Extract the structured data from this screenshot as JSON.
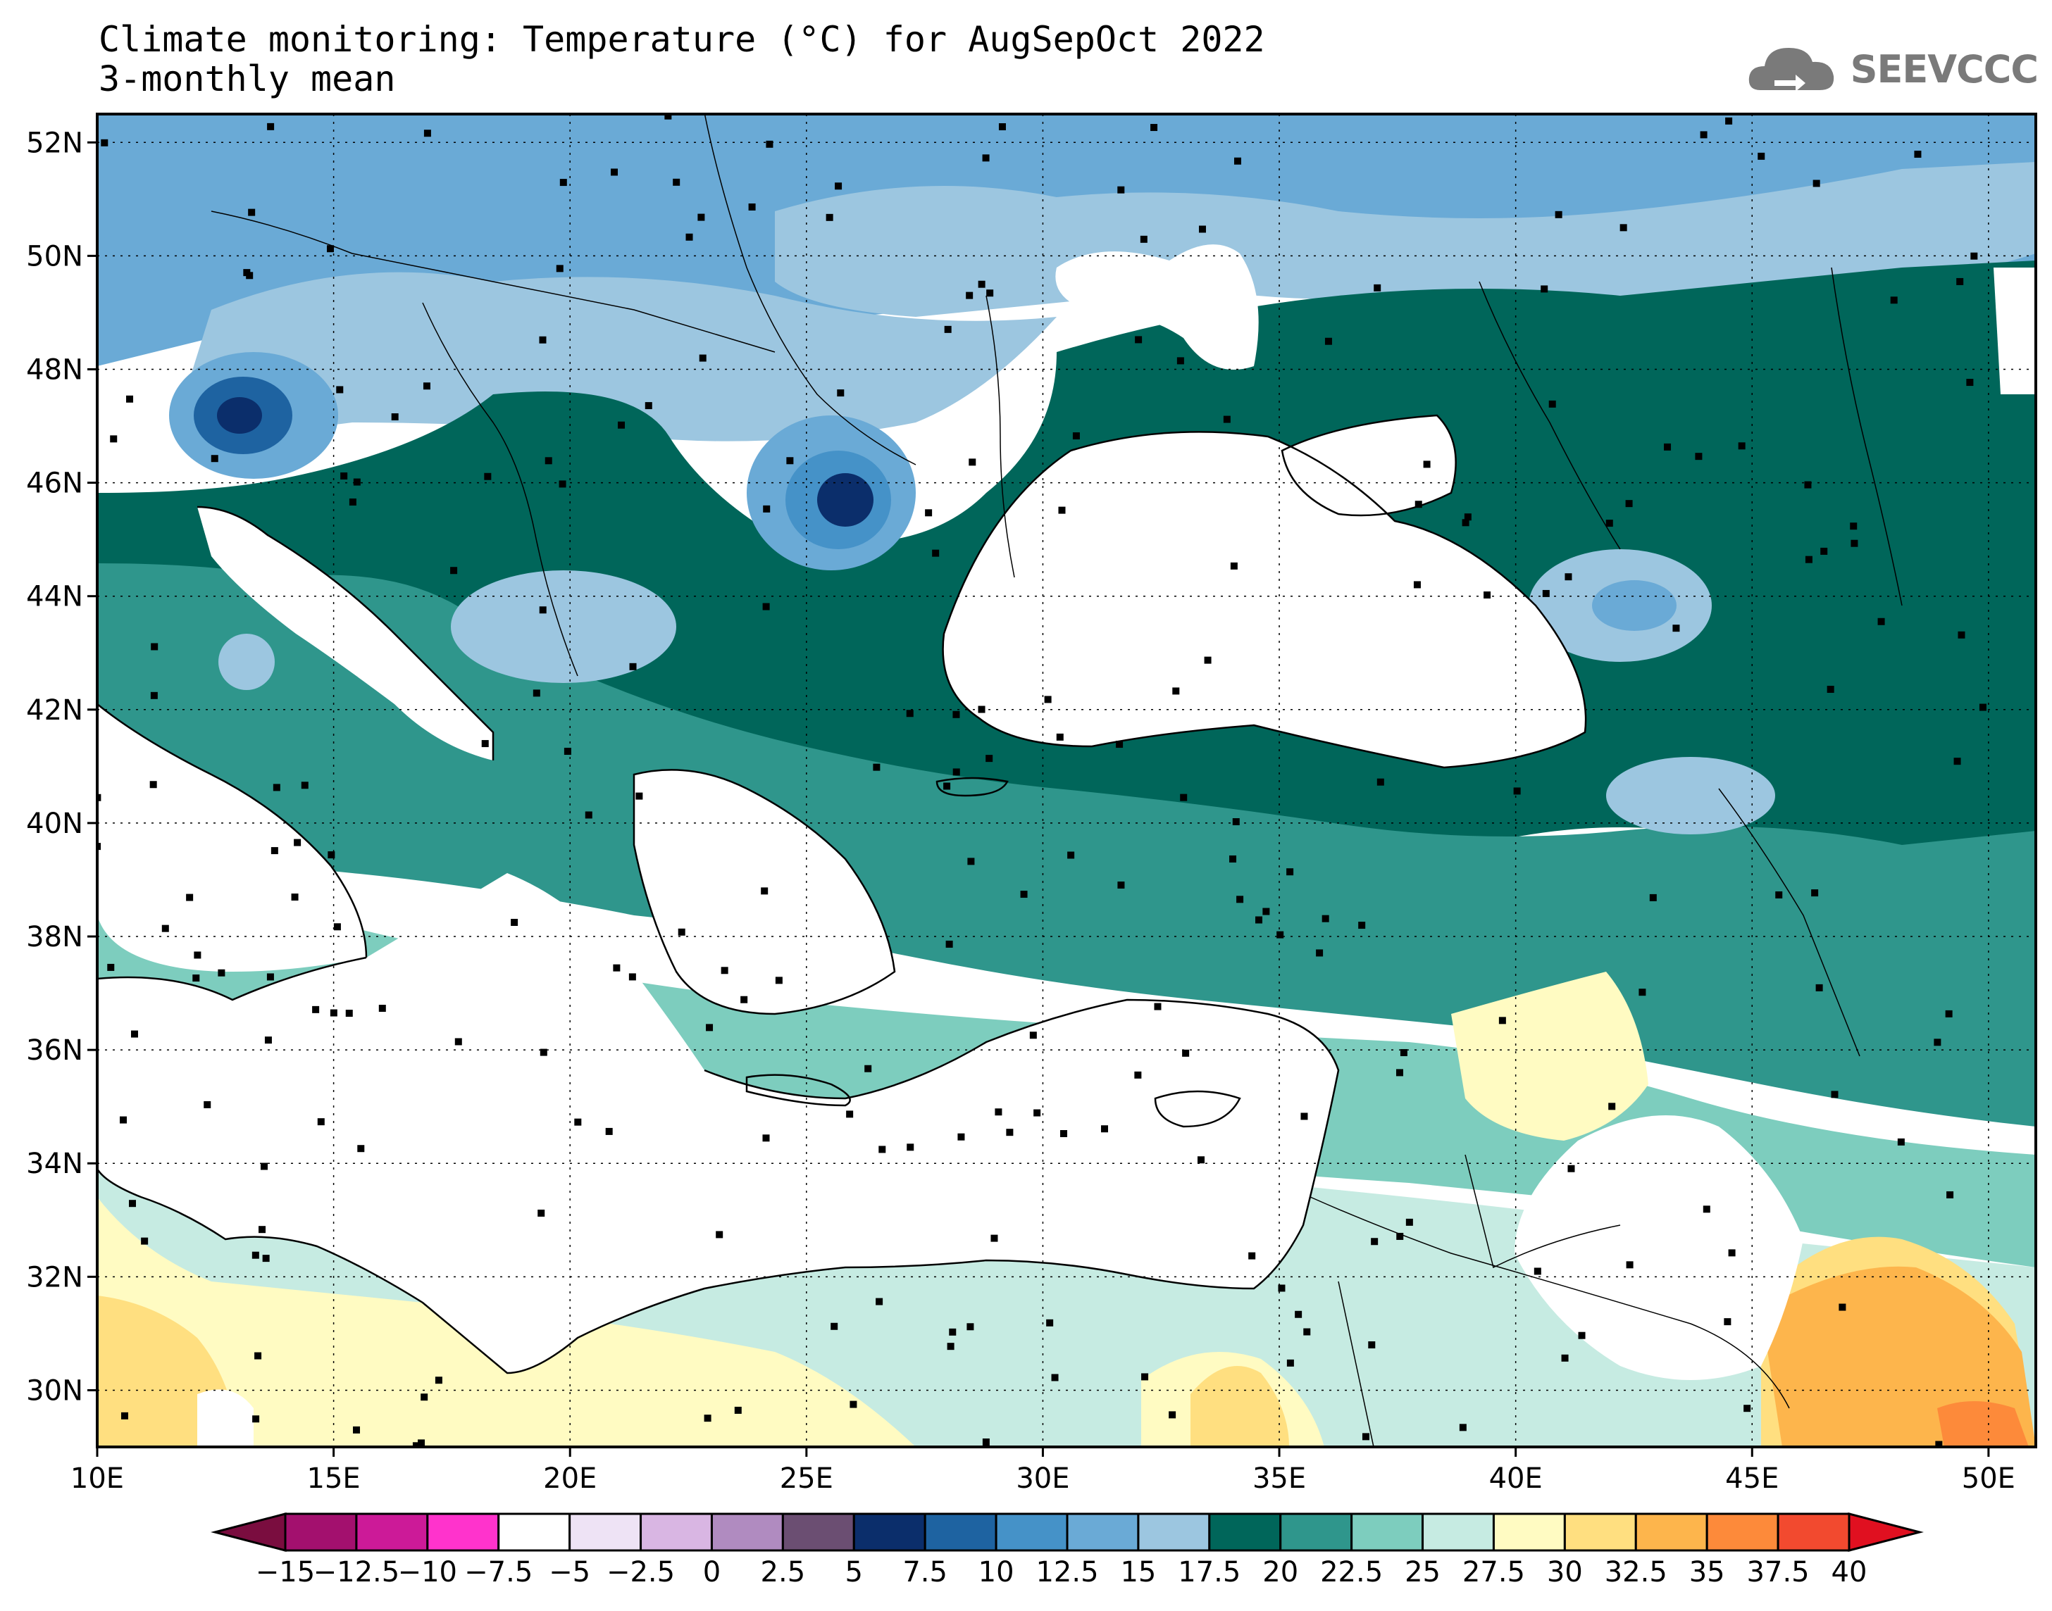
{
  "header": {
    "title": "Climate monitoring: Temperature (°C) for AugSepOct 2022",
    "subtitle": "3-monthly mean",
    "logo_text": "SEEVCCC"
  },
  "map": {
    "lon_range": [
      10,
      51
    ],
    "lat_range": [
      29,
      52.5
    ],
    "lat_labels": [
      "52N",
      "50N",
      "48N",
      "46N",
      "44N",
      "42N",
      "40N",
      "38N",
      "36N",
      "34N",
      "32N",
      "30N"
    ],
    "lat_values": [
      52,
      50,
      48,
      46,
      44,
      42,
      40,
      38,
      36,
      34,
      32,
      30
    ],
    "lon_labels": [
      "10E",
      "15E",
      "20E",
      "25E",
      "30E",
      "35E",
      "40E",
      "45E",
      "50E"
    ],
    "lon_values": [
      10,
      15,
      20,
      25,
      30,
      35,
      40,
      45,
      50
    ]
  },
  "colorbar": {
    "labels": [
      "-15",
      "-12.5",
      "-10",
      "-7.5",
      "-5",
      "-2.5",
      "0",
      "2.5",
      "5",
      "7.5",
      "10",
      "12.5",
      "15",
      "17.5",
      "20",
      "22.5",
      "25",
      "27.5",
      "30",
      "32.5",
      "35",
      "37.5",
      "40"
    ],
    "colors": [
      "#7a0d3f",
      "#a3106e",
      "#cc1a98",
      "#ff33cc",
      "#ffffff",
      "#eee3f5",
      "#d9b6e3",
      "#b08bc0",
      "#6b4e72",
      "#0b2e6b",
      "#1e63a1",
      "#4592c8",
      "#6aaad6",
      "#9cc6e0",
      "#00665a",
      "#2f968c",
      "#7dcdbe",
      "#c6ebe2",
      "#fffbc2",
      "#ffdf80",
      "#fdb54c",
      "#fd8a3a",
      "#f24a2f",
      "#e01020"
    ]
  },
  "colors": {
    "deep_blue": "#0b2e6b",
    "blue_12_5": "#4592c8",
    "blue_15": "#6aaad6",
    "blue_17_5": "#9cc6e0",
    "dark_green_20": "#00665a",
    "teal_22_5": "#2f968c",
    "teal_25": "#7dcdbe",
    "mint_27_5": "#c6ebe2",
    "cream_30": "#fffbc2",
    "yellow_32_5": "#ffdf80",
    "orange_35": "#fdb54c",
    "orange_37_5": "#fd8a3a"
  }
}
